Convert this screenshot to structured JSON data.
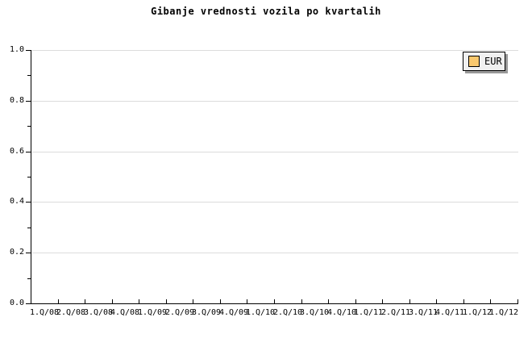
{
  "chart_data": {
    "type": "line",
    "title": "Gibanje vrednosti vozila po kvartalih",
    "categories": [
      "1.Q/08",
      "2.Q/08",
      "3.Q/08",
      "4.Q/08",
      "1.Q/09",
      "2.Q/09",
      "3.Q/09",
      "4.Q/09",
      "1.Q/10",
      "2.Q/10",
      "3.Q/10",
      "4.Q/10",
      "1.Q/11",
      "2.Q/11",
      "3.Q/11",
      "4.Q/11",
      "1.Q/12",
      "1.Q/12"
    ],
    "series": [
      {
        "name": "EUR",
        "color": "#f9c86e",
        "values": []
      }
    ],
    "xlabel": "",
    "ylabel": "",
    "ylim": [
      0.0,
      1.0
    ],
    "yticks": [
      0.0,
      0.2,
      0.4,
      0.6,
      0.8,
      1.0
    ],
    "ytick_labels": [
      "0.0",
      "0.2",
      "0.4",
      "0.6",
      "0.8",
      "1.0"
    ],
    "minor_ytick_step": 0.1,
    "grid": "horizontal-major",
    "legend_position": "top-right"
  },
  "legend": {
    "items": [
      {
        "label": "EUR",
        "color": "#f9c86e"
      }
    ]
  },
  "colors": {
    "background": "#ffffff",
    "text": "#000000",
    "axis": "#000000",
    "grid": "#dcdcdc",
    "legend_bg": "#f0f0f0",
    "legend_border": "#000000",
    "legend_shadow": "#999999"
  }
}
